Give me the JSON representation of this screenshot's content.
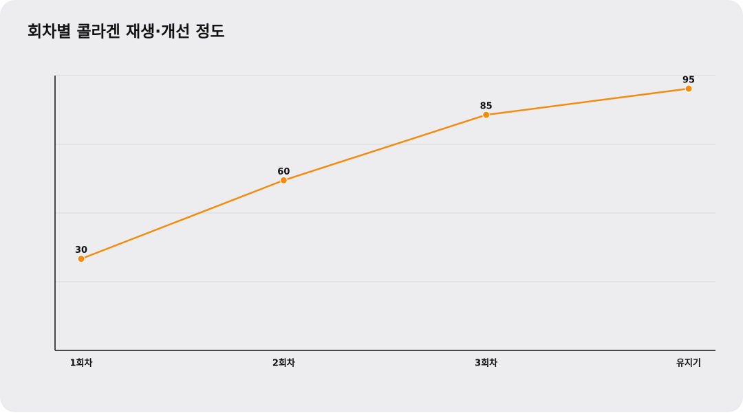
{
  "chart_data": {
    "type": "line",
    "title": "회차별 콜라겐 재생·개선 정도",
    "categories": [
      "1회차",
      "2회차",
      "3회차",
      "유지기"
    ],
    "series": [
      {
        "name": "콜라겐 재생·개선 정도",
        "color": "#f28c0f",
        "values": [
          30,
          60,
          85,
          95
        ]
      }
    ],
    "ylim": [
      -5,
      100
    ],
    "yticks": [
      -5,
      21.25,
      47.5,
      73.75,
      100
    ],
    "grid": true,
    "data_labels": true
  }
}
